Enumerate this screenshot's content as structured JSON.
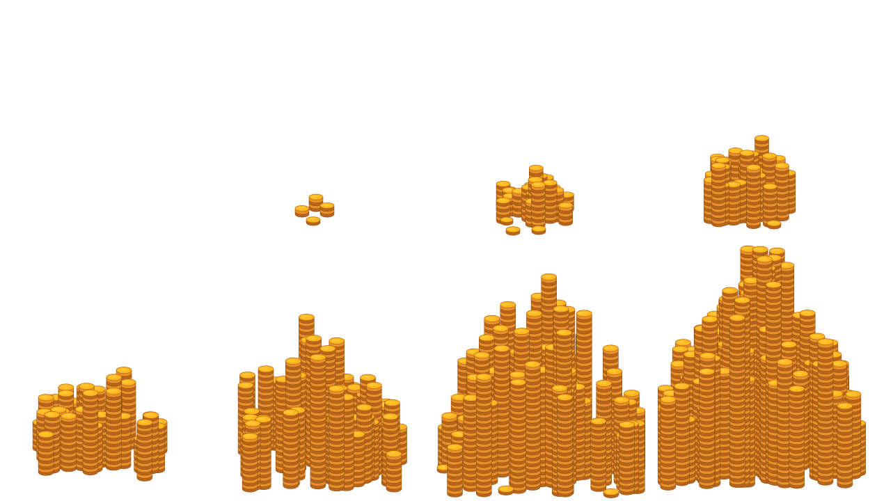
{
  "sprite_sheet": {
    "background": "#ffffff",
    "colors": {
      "coin_top": "#ffb81f",
      "coin_top_light": "#ffcc3d",
      "coin_edge": "#e8902a",
      "coin_edge_dark": "#b8641a",
      "coin_rim_line": "#8a4a10",
      "coin_shadow": "#c07020"
    },
    "piles": [
      {
        "name": "coin-pile-small",
        "level": 1
      },
      {
        "name": "coin-pile-medium",
        "level": 2
      },
      {
        "name": "coin-pile-large",
        "level": 3
      },
      {
        "name": "coin-pile-huge",
        "level": 4
      }
    ],
    "clusters": [
      {
        "name": "coin-cluster-tiny",
        "level": 1
      },
      {
        "name": "coin-cluster-small",
        "level": 2
      },
      {
        "name": "coin-cluster-medium",
        "level": 3
      }
    ]
  }
}
